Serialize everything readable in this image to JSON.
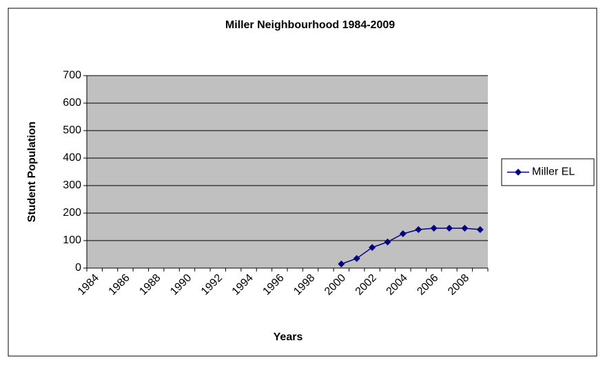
{
  "chart_data": {
    "type": "line",
    "title": "Miller Neighbourhood 1984-2009",
    "x_label": "Years",
    "y_label": "Student Population",
    "categories": [
      "1984",
      null,
      "1986",
      null,
      "1988",
      null,
      "1990",
      null,
      "1992",
      null,
      "1994",
      null,
      "1996",
      null,
      "1998",
      null,
      "2000",
      null,
      "2002",
      null,
      "2004",
      null,
      "2006",
      null,
      "2008",
      null
    ],
    "series": [
      {
        "name": "Miller EL",
        "color": "#000080",
        "values": [
          null,
          null,
          null,
          null,
          null,
          null,
          null,
          null,
          null,
          null,
          null,
          null,
          null,
          null,
          null,
          null,
          15,
          35,
          75,
          95,
          125,
          140,
          145,
          145,
          145,
          140
        ]
      }
    ],
    "ylim": [
      0,
      700
    ],
    "yticks": [
      0,
      100,
      200,
      300,
      400,
      500,
      600,
      700
    ],
    "grid": true,
    "legend": "right"
  }
}
